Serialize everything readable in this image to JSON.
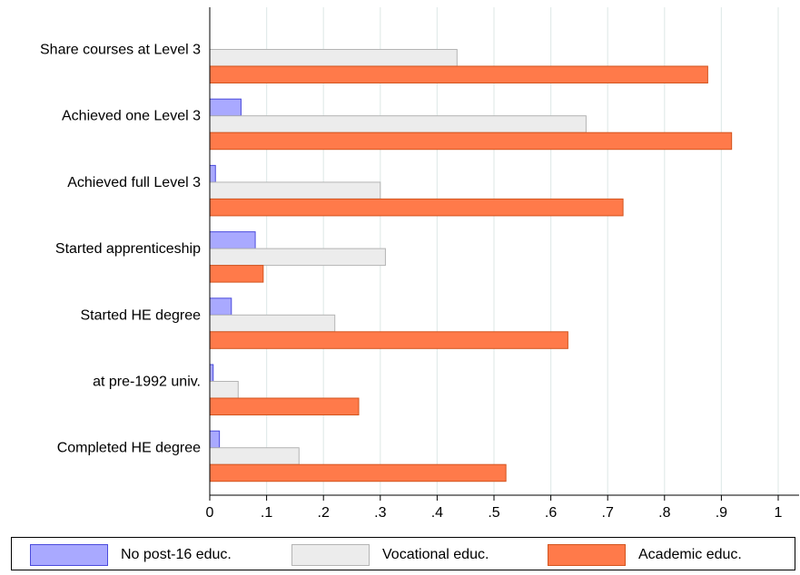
{
  "chart_data": {
    "type": "bar",
    "orientation": "horizontal",
    "categories": [
      "Share courses at Level 3",
      "Achieved one Level 3",
      "Achieved full Level 3",
      "Started apprenticeship",
      "Started HE degree",
      "at pre-1992 univ.",
      "Completed HE degree"
    ],
    "series": [
      {
        "name": "No post-16 educ.",
        "color": "#a9a9ff",
        "stroke": "#4b4bdc",
        "values": [
          0.0,
          0.055,
          0.01,
          0.08,
          0.038,
          0.006,
          0.017
        ]
      },
      {
        "name": "Vocational educ.",
        "color": "#ececec",
        "stroke": "#b4b4b4",
        "values": [
          0.435,
          0.662,
          0.3,
          0.309,
          0.22,
          0.05,
          0.157
        ]
      },
      {
        "name": "Academic educ.",
        "color": "#ff7a4a",
        "stroke": "#d2541e",
        "values": [
          0.876,
          0.918,
          0.727,
          0.094,
          0.63,
          0.262,
          0.521
        ]
      }
    ],
    "xlim": [
      0,
      1
    ],
    "xticks": [
      0,
      0.1,
      0.2,
      0.3,
      0.4,
      0.5,
      0.6,
      0.7,
      0.8,
      0.9,
      1
    ],
    "xtick_labels": [
      "0",
      ".1",
      ".2",
      ".3",
      ".4",
      ".5",
      ".6",
      ".7",
      ".8",
      ".9",
      "1"
    ],
    "grid": true,
    "legend_position": "bottom"
  },
  "legend": {
    "items": [
      {
        "label": "No post-16 educ."
      },
      {
        "label": "Vocational educ."
      },
      {
        "label": "Academic educ."
      }
    ]
  }
}
